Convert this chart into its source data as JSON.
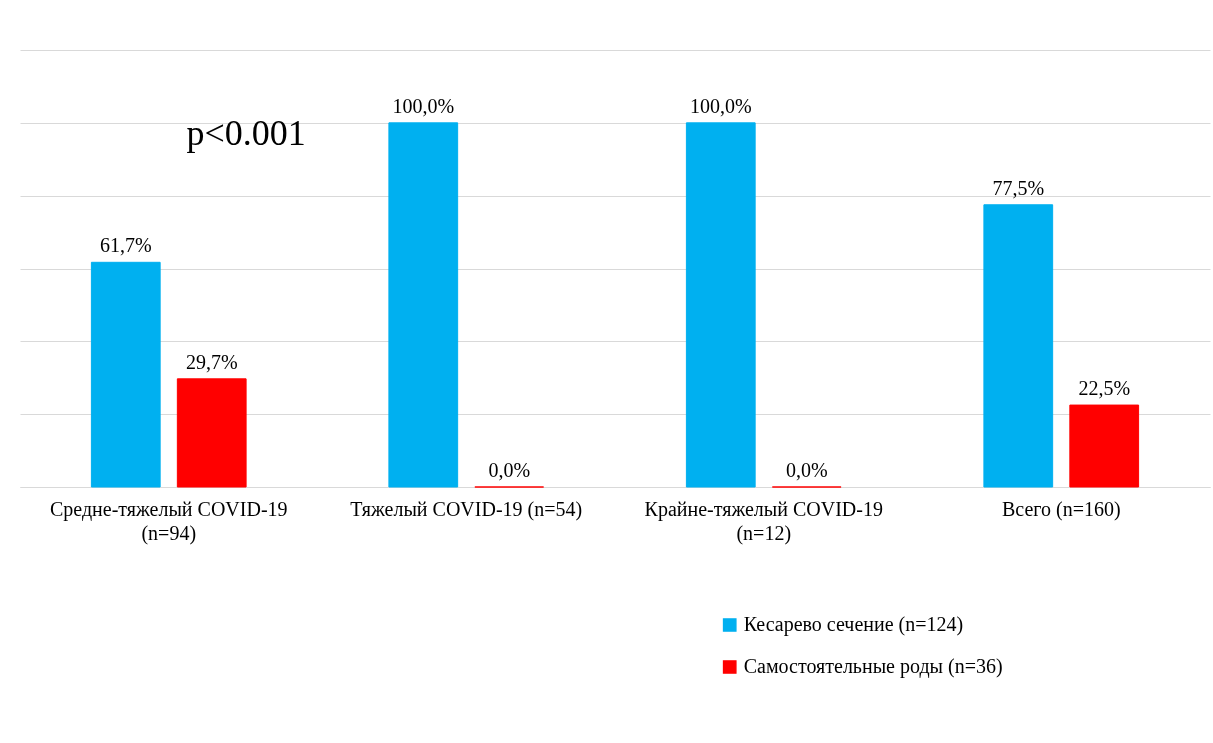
{
  "chart_data": {
    "type": "bar",
    "categories": [
      "Средне-тяжелый COVID-19 (n=94)",
      "Тяжелый COVID-19 (n=54)",
      "Крайне-тяжелый COVID-19 (n=12)",
      "Всего (n=160)"
    ],
    "series": [
      {
        "name": "Кесарево сечение (n=124)",
        "color": "#00b0f0",
        "values": [
          61.7,
          100,
          100,
          77.5
        ],
        "value_labels": [
          "61,7%",
          "100,0%",
          "100,0%",
          "77,5%"
        ]
      },
      {
        "name": "Самостоятельные роды (n=36)",
        "color": "#ff0000",
        "values": [
          29.7,
          0,
          0,
          22.5
        ],
        "value_labels": [
          "29,7%",
          "0,0%",
          "0,0%",
          "22,5%"
        ]
      }
    ],
    "ylim": [
      0,
      120
    ],
    "yticks": [
      {
        "value": 0,
        "label": null
      },
      {
        "value": 20,
        "label": null
      },
      {
        "value": 40,
        "label": null
      },
      {
        "value": 60,
        "label": null
      },
      {
        "value": 80,
        "label": null
      },
      {
        "value": 100,
        "label": null
      },
      {
        "value": 120,
        "label": null
      }
    ],
    "tick_labels": "x",
    "grid": "y",
    "legend": "bottom",
    "annotations": [
      "p<0.001"
    ]
  }
}
